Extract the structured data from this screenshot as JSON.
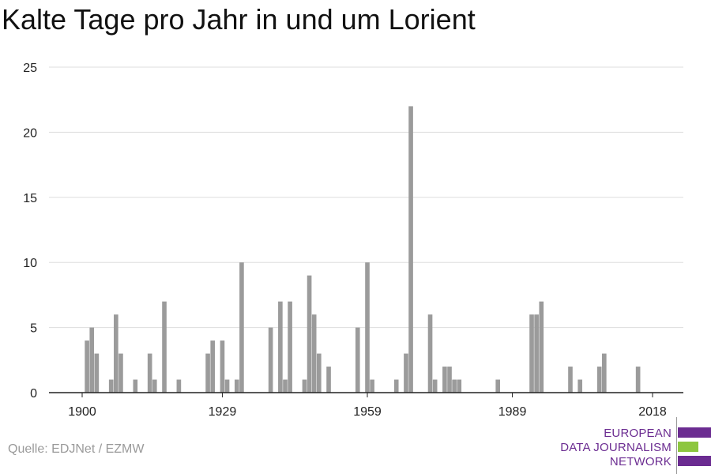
{
  "title": "Kalte Tage pro Jahr in und um Lorient",
  "source": "Quelle: EDJNet / EZMW",
  "logo": {
    "lines": [
      "EUROPEAN",
      "DATA JOURNALISM",
      "NETWORK"
    ],
    "colors": {
      "text": "#6b2c91",
      "bar": "#6b2c91",
      "accent": "#8dc63f"
    }
  },
  "colors": {
    "bar": "#9b9b9b",
    "grid": "#dddddd",
    "axis": "#222222",
    "tick_text": "#222222"
  },
  "chart_data": {
    "type": "bar",
    "title": "Kalte Tage pro Jahr in und um Lorient",
    "xlabel": "",
    "ylabel": "",
    "x_range": [
      1900,
      2018
    ],
    "ylim": [
      0,
      25
    ],
    "y_ticks": [
      0,
      5,
      10,
      15,
      20,
      25
    ],
    "x_ticks": [
      1900,
      1929,
      1959,
      1989,
      2018
    ],
    "grid": true,
    "x": [
      1900,
      1901,
      1902,
      1903,
      1904,
      1905,
      1906,
      1907,
      1908,
      1909,
      1910,
      1911,
      1912,
      1913,
      1914,
      1915,
      1916,
      1917,
      1918,
      1919,
      1920,
      1921,
      1922,
      1923,
      1924,
      1925,
      1926,
      1927,
      1928,
      1929,
      1930,
      1931,
      1932,
      1933,
      1934,
      1935,
      1936,
      1937,
      1938,
      1939,
      1940,
      1941,
      1942,
      1943,
      1944,
      1945,
      1946,
      1947,
      1948,
      1949,
      1950,
      1951,
      1952,
      1953,
      1954,
      1955,
      1956,
      1957,
      1958,
      1959,
      1960,
      1961,
      1962,
      1963,
      1964,
      1965,
      1966,
      1967,
      1968,
      1969,
      1970,
      1971,
      1972,
      1973,
      1974,
      1975,
      1976,
      1977,
      1978,
      1979,
      1980,
      1981,
      1982,
      1983,
      1984,
      1985,
      1986,
      1987,
      1988,
      1989,
      1990,
      1991,
      1992,
      1993,
      1994,
      1995,
      1996,
      1997,
      1998,
      1999,
      2000,
      2001,
      2002,
      2003,
      2004,
      2005,
      2006,
      2007,
      2008,
      2009,
      2010,
      2011,
      2012,
      2013,
      2014,
      2015,
      2016,
      2017,
      2018
    ],
    "values": [
      0,
      4,
      5,
      3,
      0,
      0,
      1,
      6,
      3,
      0,
      0,
      1,
      0,
      0,
      3,
      1,
      0,
      7,
      0,
      0,
      1,
      0,
      0,
      0,
      0,
      0,
      3,
      4,
      0,
      4,
      1,
      0,
      1,
      10,
      0,
      0,
      0,
      0,
      0,
      5,
      0,
      7,
      1,
      7,
      0,
      0,
      1,
      9,
      6,
      3,
      0,
      2,
      0,
      0,
      0,
      0,
      0,
      5,
      0,
      10,
      1,
      0,
      0,
      0,
      0,
      1,
      0,
      3,
      22,
      0,
      0,
      0,
      6,
      1,
      0,
      2,
      2,
      1,
      1,
      0,
      0,
      0,
      0,
      0,
      0,
      0,
      1,
      0,
      0,
      0,
      0,
      0,
      0,
      6,
      6,
      7,
      0,
      0,
      0,
      0,
      0,
      2,
      0,
      1,
      0,
      0,
      0,
      2,
      3,
      0,
      0,
      0,
      0,
      0,
      0,
      2,
      0,
      0,
      0
    ]
  }
}
